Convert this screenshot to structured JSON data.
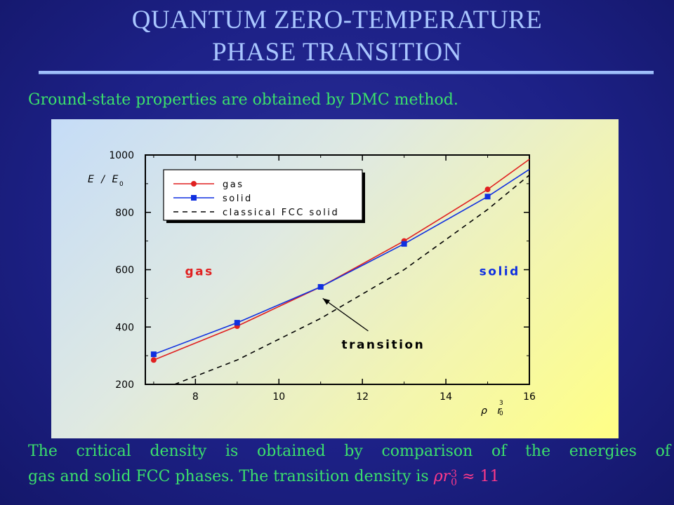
{
  "slide": {
    "title_line1": "QUANTUM ZERO-TEMPERATURE",
    "title_line2": "PHASE TRANSITION",
    "subtitle": "Ground-state properties are obtained by DMC method.",
    "caption_line1": "The critical density is obtained by comparison of the energies of",
    "caption_line2_text": "gas and solid FCC phases. The transition density is",
    "caption_math": {
      "rho": "ρr",
      "sup": "3",
      "sub": "0",
      "approx": " ≈ 11"
    },
    "colors": {
      "background": "#1d2187",
      "title": "#a9c6ff",
      "text": "#3be06c",
      "math": "#ff3a8a"
    }
  },
  "chart_data": {
    "type": "line",
    "xlabel": "ρ r",
    "xlabel_sup": "3",
    "xlabel_sub": "0",
    "ylabel": "E / E",
    "ylabel_sub": "0",
    "xlim": [
      6.8,
      16
    ],
    "ylim": [
      200,
      1000
    ],
    "xticks": [
      8,
      10,
      12,
      14,
      16
    ],
    "yticks": [
      200,
      400,
      600,
      800,
      1000
    ],
    "legend_position": "top-left",
    "series": [
      {
        "name": "gas",
        "color": "#e02020",
        "marker": "circle",
        "dash": "solid",
        "x": [
          7,
          9,
          11,
          13,
          15,
          16
        ],
        "y": [
          285,
          403,
          540,
          700,
          880,
          985
        ],
        "marker_x": [
          7,
          9,
          11,
          13,
          15
        ],
        "marker_y": [
          285,
          403,
          540,
          700,
          880
        ]
      },
      {
        "name": "solid",
        "color": "#1030e0",
        "marker": "square",
        "dash": "solid",
        "x": [
          7,
          9,
          11,
          13,
          15,
          16
        ],
        "y": [
          305,
          415,
          540,
          690,
          855,
          950
        ],
        "marker_x": [
          7,
          9,
          11,
          13,
          15
        ],
        "marker_y": [
          305,
          415,
          540,
          690,
          855
        ]
      },
      {
        "name": "classical FCC solid",
        "color": "#000000",
        "marker": "none",
        "dash": "dashed",
        "x": [
          7.5,
          9,
          11,
          13,
          15,
          16
        ],
        "y": [
          200,
          285,
          430,
          600,
          810,
          930
        ]
      }
    ],
    "annotations": [
      {
        "text": "gas",
        "color": "#e02020",
        "x": 7.75,
        "y": 580
      },
      {
        "text": "solid",
        "color": "#1030e0",
        "x": 14.8,
        "y": 580
      },
      {
        "text": "transition",
        "color": "#000000",
        "x": 11.5,
        "y": 325,
        "arrow_to": [
          11.05,
          500
        ]
      }
    ]
  }
}
